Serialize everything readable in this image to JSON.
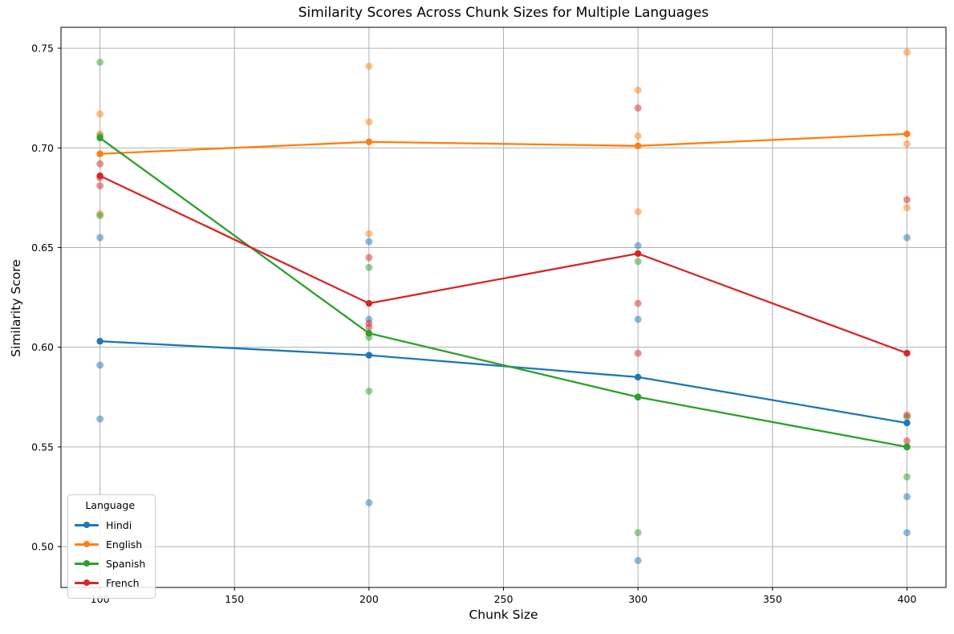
{
  "chart_data": {
    "type": "line",
    "title": "Similarity Scores Across Chunk Sizes for Multiple Languages",
    "xlabel": "Chunk Size",
    "ylabel": "Similarity Score",
    "x": [
      100,
      200,
      300,
      400
    ],
    "xticks": [
      100,
      150,
      200,
      250,
      300,
      350,
      400
    ],
    "yticks": [
      0.5,
      0.55,
      0.6,
      0.65,
      0.7,
      0.75
    ],
    "xlim": [
      85.5,
      414.5
    ],
    "ylim": [
      0.4795,
      0.7605
    ],
    "grid": true,
    "background": "#ffffff",
    "grid_color": "#b0b0b0",
    "spine_color": "#000000",
    "legend": {
      "title": "Language",
      "position": "lower-left"
    },
    "series": [
      {
        "name": "Hindi",
        "color": "#1f77b4",
        "means": [
          0.603,
          0.596,
          0.585,
          0.562
        ],
        "scatter": [
          [
            0.655,
            0.591,
            0.564
          ],
          [
            0.653,
            0.614,
            0.522
          ],
          [
            0.651,
            0.614,
            0.493
          ],
          [
            0.655,
            0.525,
            0.507
          ]
        ]
      },
      {
        "name": "English",
        "color": "#ff7f0e",
        "means": [
          0.697,
          0.703,
          0.701,
          0.707
        ],
        "scatter": [
          [
            0.717,
            0.707,
            0.667
          ],
          [
            0.741,
            0.713,
            0.657
          ],
          [
            0.729,
            0.706,
            0.668
          ],
          [
            0.748,
            0.702,
            0.67
          ]
        ]
      },
      {
        "name": "Spanish",
        "color": "#2ca02c",
        "means": [
          0.705,
          0.607,
          0.575,
          0.55
        ],
        "scatter": [
          [
            0.743,
            0.706,
            0.666
          ],
          [
            0.64,
            0.605,
            0.578
          ],
          [
            0.643,
            0.575,
            0.507
          ],
          [
            0.565,
            0.55,
            0.535
          ]
        ]
      },
      {
        "name": "French",
        "color": "#d62728",
        "means": [
          0.686,
          0.622,
          0.647,
          0.597
        ],
        "scatter": [
          [
            0.692,
            0.685,
            0.681
          ],
          [
            0.645,
            0.612,
            0.61
          ],
          [
            0.72,
            0.622,
            0.597
          ],
          [
            0.674,
            0.566,
            0.553
          ]
        ]
      }
    ]
  }
}
